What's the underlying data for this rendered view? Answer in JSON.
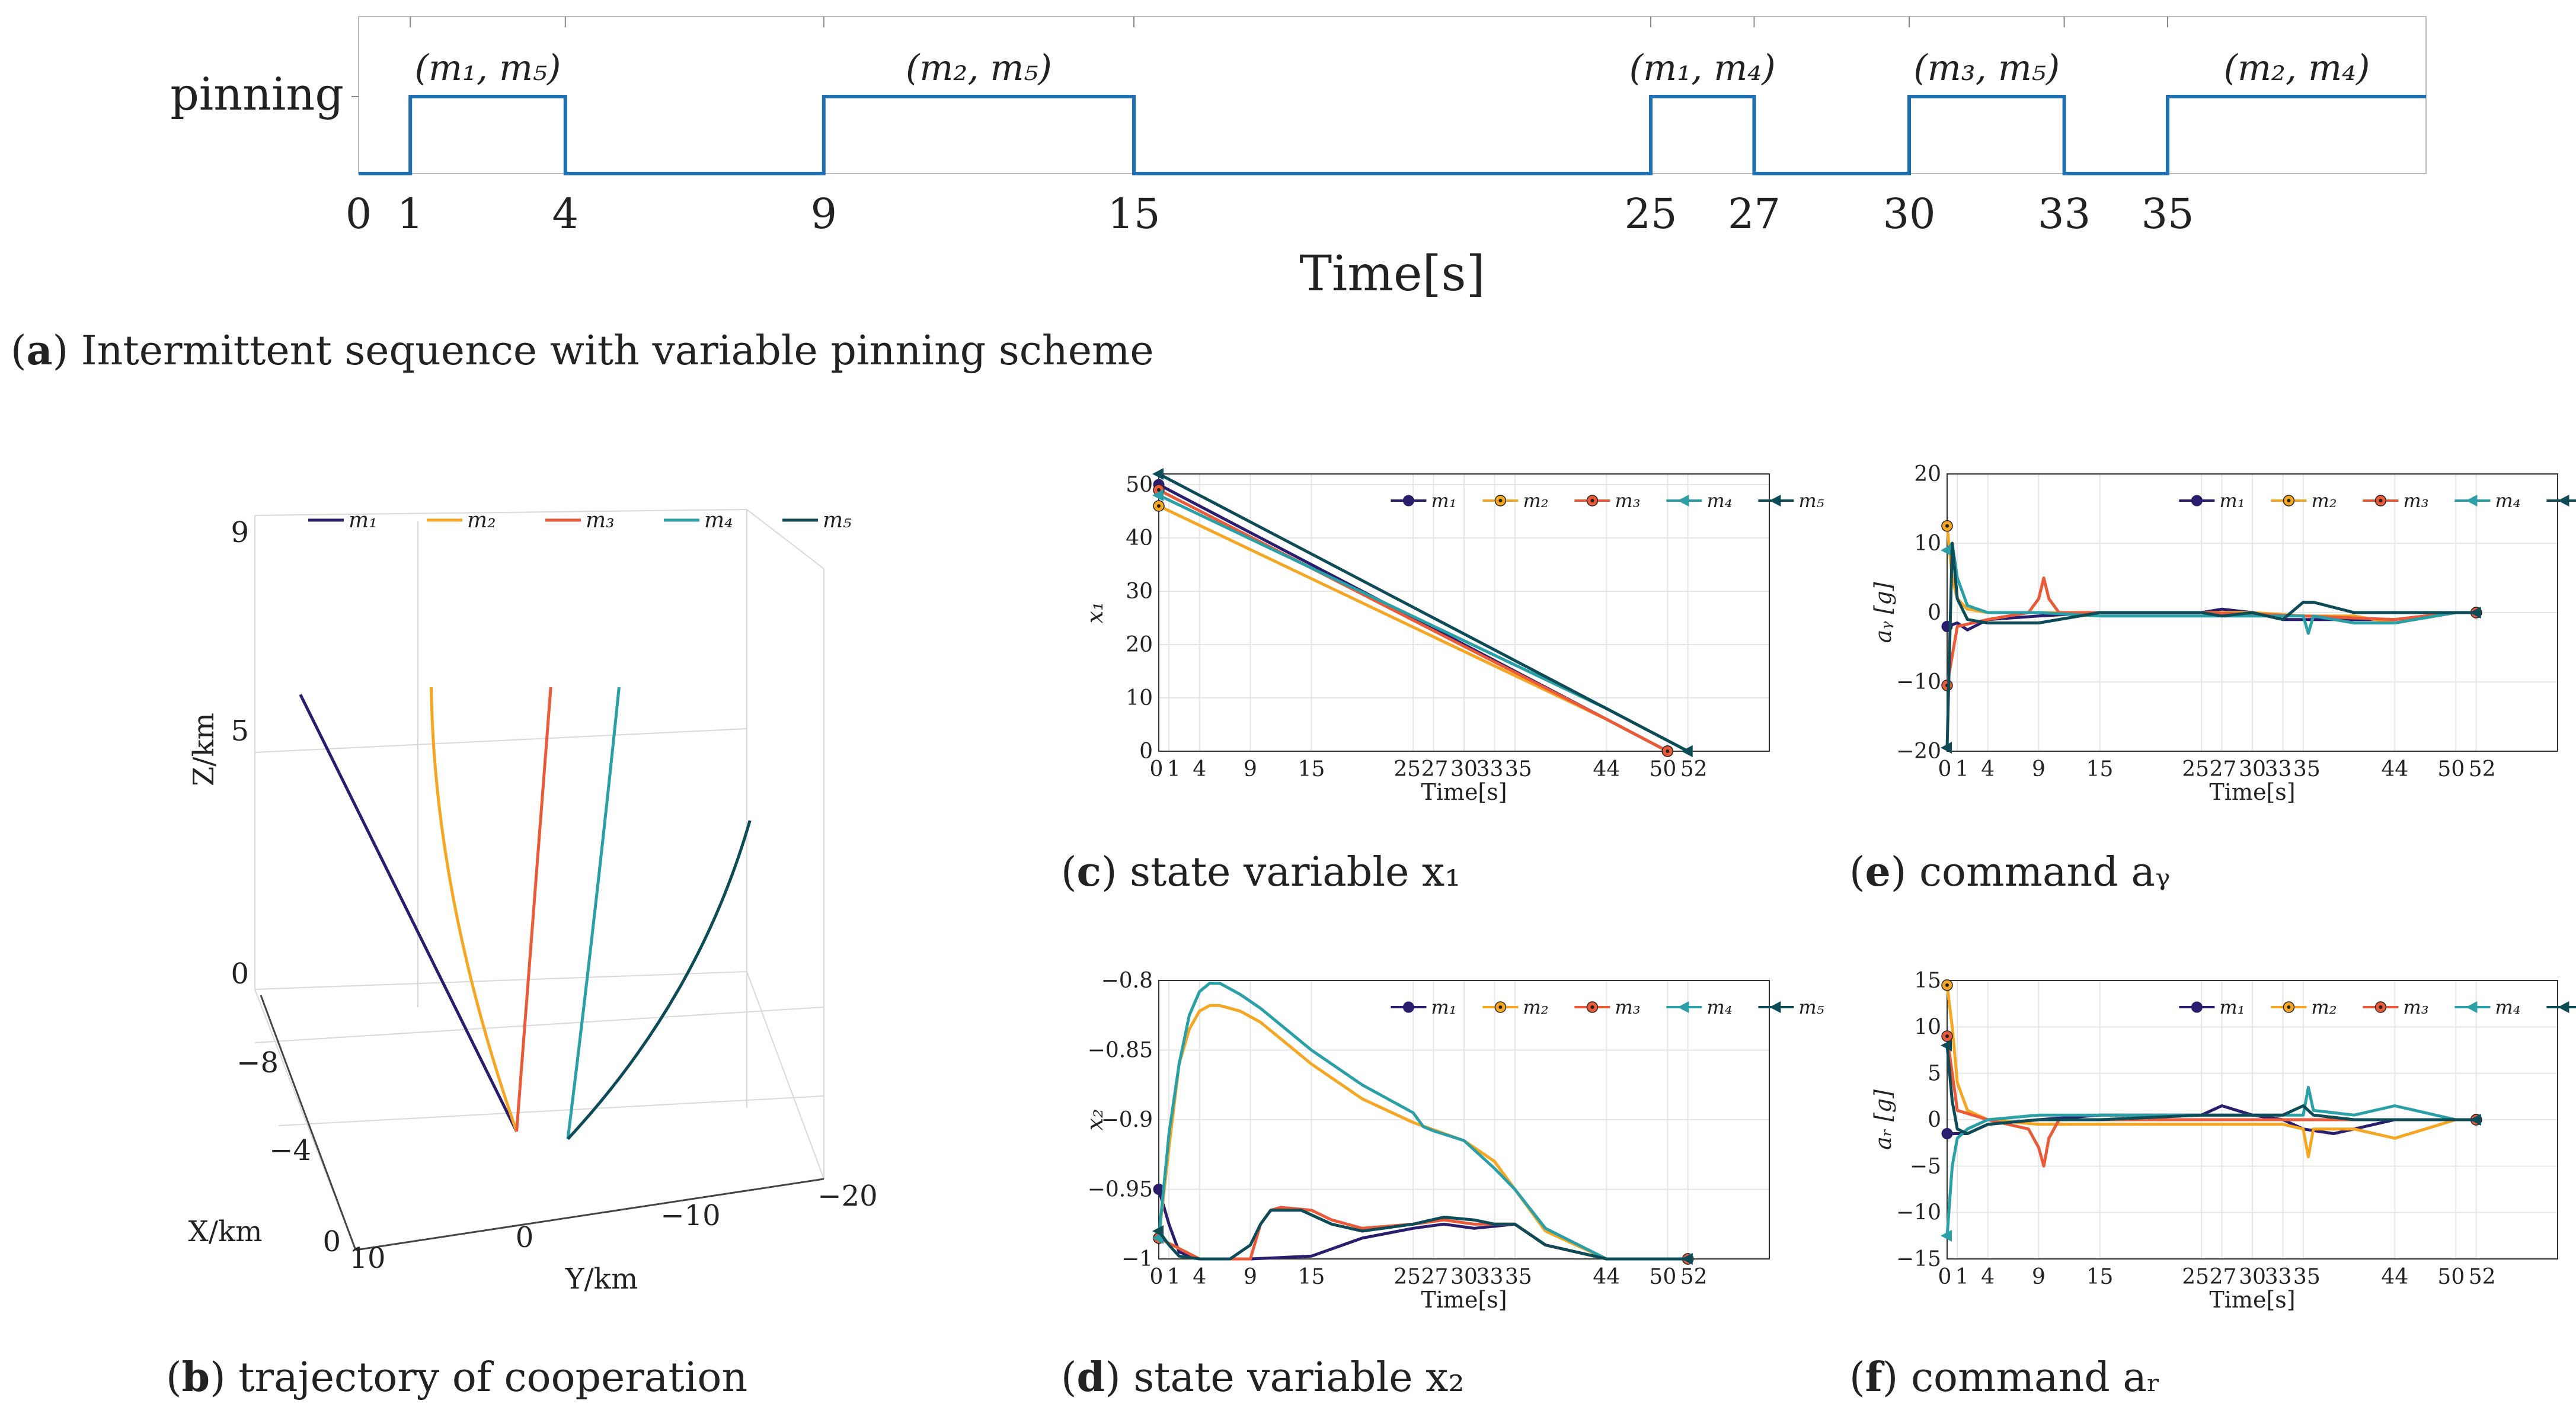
{
  "palette": {
    "m1": "#2b1d6e",
    "m2": "#f5a623",
    "m3": "#ea5a38",
    "m4": "#2a9fa6",
    "m5": "#0d4b57",
    "signal": "#1f6fb0",
    "grid": "#e6e6e6",
    "axis": "#333333"
  },
  "legend_names": [
    "m₁",
    "m₂",
    "m₃",
    "m₄",
    "m₅"
  ],
  "legend_markers": [
    "circle",
    "asterisk-circle",
    "asterisk-circle",
    "triangle-left",
    "triangle-left"
  ],
  "captions": {
    "a": {
      "letter": "a",
      "text": "Intermittent sequence with variable pinning scheme"
    },
    "b": {
      "letter": "b",
      "text": "trajectory of cooperation"
    },
    "c": {
      "letter": "c",
      "text": "state variable x₁"
    },
    "d": {
      "letter": "d",
      "text": "state variable x₂"
    },
    "e": {
      "letter": "e",
      "text": "command aᵧ"
    },
    "f": {
      "letter": "f",
      "text": "command aᵣ"
    }
  },
  "chart_data": [
    {
      "id": "a",
      "type": "line",
      "ylabel": "pinning",
      "xlabel": "Time[s]",
      "xlim": [
        0,
        40
      ],
      "xticks": [
        0,
        1,
        4,
        9,
        15,
        25,
        27,
        30,
        33,
        35
      ],
      "intervals": [
        {
          "start": 1,
          "end": 4,
          "label": "(m₁, m₅)"
        },
        {
          "start": 9,
          "end": 15,
          "label": "(m₂, m₅)"
        },
        {
          "start": 25,
          "end": 27,
          "label": "(m₁, m₄)"
        },
        {
          "start": 30,
          "end": 33,
          "label": "(m₃, m₅)"
        },
        {
          "start": 35,
          "end": 40,
          "label": "(m₂, m₄)"
        }
      ]
    },
    {
      "id": "b",
      "type": "line",
      "xlabel": "X/km",
      "ylabel": "Y/km",
      "zlabel": "Z/km",
      "x_ticks": [
        "0",
        "−4",
        "−8"
      ],
      "y_ticks": [
        "10",
        "0",
        "−10",
        "−20"
      ],
      "z_ticks": [
        "0",
        "5",
        "9"
      ],
      "series": [
        {
          "name": "m₁",
          "points": [
            [
              0.08,
              0.25,
              1.08
            ],
            [
              0.46,
              0.84,
              0.0
            ]
          ]
        },
        {
          "name": "m₂",
          "points": [
            [
              0.31,
              0.24,
              1.0
            ],
            [
              0.315,
              0.52,
              0.9
            ],
            [
              0.46,
              0.84,
              0.0
            ]
          ]
        },
        {
          "name": "m₃",
          "points": [
            [
              0.52,
              0.24,
              1.0
            ],
            [
              0.46,
              0.84,
              0.0
            ]
          ]
        },
        {
          "name": "m₄",
          "points": [
            [
              0.64,
              0.24,
              1.0
            ],
            [
              0.6,
              0.54,
              0.94
            ],
            [
              0.55,
              0.85,
              0.0
            ]
          ]
        },
        {
          "name": "m₅",
          "points": [
            [
              0.87,
              0.42,
              1.0
            ],
            [
              0.78,
              0.66,
              0.85
            ],
            [
              0.55,
              0.85,
              0.0
            ]
          ]
        }
      ]
    },
    {
      "id": "c",
      "type": "line",
      "xlabel": "Time[s]",
      "ylabel": "x₁",
      "xlim": [
        0,
        60
      ],
      "ylim": [
        0,
        52
      ],
      "xticks": [
        0,
        1,
        4,
        9,
        15,
        25,
        27,
        30,
        33,
        35,
        44,
        50,
        52
      ],
      "yticks": [
        0,
        10,
        20,
        30,
        40,
        50
      ],
      "series": [
        {
          "name": "m₁",
          "x": [
            0,
            44,
            50
          ],
          "y": [
            50,
            6,
            0
          ]
        },
        {
          "name": "m₂",
          "x": [
            0,
            44,
            50
          ],
          "y": [
            46,
            6,
            0
          ]
        },
        {
          "name": "m₃",
          "x": [
            0,
            44,
            50
          ],
          "y": [
            49,
            6,
            0
          ]
        },
        {
          "name": "m₄",
          "x": [
            0,
            44,
            52
          ],
          "y": [
            48,
            8,
            0
          ]
        },
        {
          "name": "m₅",
          "x": [
            0,
            44,
            50,
            52
          ],
          "y": [
            52,
            8,
            2,
            0
          ]
        }
      ]
    },
    {
      "id": "d",
      "type": "line",
      "xlabel": "Time[s]",
      "ylabel": "x₂",
      "xlim": [
        0,
        60
      ],
      "ylim": [
        -1,
        -0.8
      ],
      "xticks": [
        0,
        1,
        4,
        9,
        15,
        25,
        27,
        30,
        33,
        35,
        44,
        50,
        52
      ],
      "yticks": [
        -1,
        -0.95,
        -0.9,
        -0.85,
        -0.8
      ],
      "series": [
        {
          "name": "m₁",
          "x": [
            0,
            1,
            2,
            4,
            9,
            15,
            20,
            25,
            28,
            31,
            35,
            38,
            44,
            50,
            52
          ],
          "y": [
            -0.95,
            -0.975,
            -0.995,
            -1.0,
            -1.0,
            -0.998,
            -0.985,
            -0.978,
            -0.975,
            -0.978,
            -0.975,
            -0.99,
            -1.0,
            -1.0,
            -1.0
          ]
        },
        {
          "name": "m₂",
          "x": [
            0,
            1,
            2,
            3,
            4,
            5,
            6,
            8,
            10,
            15,
            20,
            25,
            30,
            33,
            35,
            38,
            44,
            50,
            52
          ],
          "y": [
            -0.985,
            -0.92,
            -0.86,
            -0.835,
            -0.822,
            -0.818,
            -0.818,
            -0.822,
            -0.83,
            -0.86,
            -0.885,
            -0.902,
            -0.915,
            -0.93,
            -0.95,
            -0.98,
            -1.0,
            -1.0,
            -1.0
          ]
        },
        {
          "name": "m₃",
          "x": [
            0,
            4,
            8,
            9,
            10,
            11,
            12,
            15,
            17,
            20,
            25,
            28,
            31,
            35,
            38,
            44,
            50,
            52
          ],
          "y": [
            -0.985,
            -1.0,
            -1.0,
            -1.0,
            -0.975,
            -0.965,
            -0.963,
            -0.965,
            -0.972,
            -0.978,
            -0.975,
            -0.972,
            -0.975,
            -0.975,
            -0.99,
            -1.0,
            -1.0,
            -1.0
          ]
        },
        {
          "name": "m₄",
          "x": [
            0,
            1,
            2,
            3,
            4,
            5,
            6,
            8,
            10,
            15,
            20,
            25,
            26,
            27,
            30,
            33,
            35,
            38,
            44,
            50,
            52
          ],
          "y": [
            -0.985,
            -0.91,
            -0.86,
            -0.825,
            -0.808,
            -0.802,
            -0.802,
            -0.81,
            -0.82,
            -0.85,
            -0.875,
            -0.895,
            -0.905,
            -0.908,
            -0.915,
            -0.935,
            -0.95,
            -0.978,
            -1.0,
            -1.0,
            -1.0
          ]
        },
        {
          "name": "m₅",
          "x": [
            0,
            1,
            2,
            4,
            7,
            9,
            10,
            11,
            14,
            17,
            20,
            25,
            28,
            31,
            33,
            35,
            38,
            44,
            50,
            52
          ],
          "y": [
            -0.98,
            -0.99,
            -0.998,
            -1.0,
            -1.0,
            -0.99,
            -0.975,
            -0.965,
            -0.965,
            -0.975,
            -0.98,
            -0.975,
            -0.97,
            -0.972,
            -0.975,
            -0.975,
            -0.99,
            -1.0,
            -1.0,
            -1.0
          ]
        }
      ]
    },
    {
      "id": "e",
      "type": "line",
      "xlabel": "Time[s]",
      "ylabel": "aᵧ [g]",
      "xlim": [
        0,
        60
      ],
      "ylim": [
        -20,
        20
      ],
      "xticks": [
        0,
        1,
        4,
        9,
        15,
        25,
        27,
        30,
        33,
        35,
        44,
        50,
        52
      ],
      "yticks": [
        -20,
        -10,
        0,
        10,
        20
      ],
      "series": [
        {
          "name": "m₁",
          "x": [
            0,
            1,
            2,
            4,
            9,
            15,
            25,
            27,
            30,
            33,
            35,
            38,
            44,
            50,
            52
          ],
          "y": [
            -2,
            -1.5,
            -2.5,
            -1,
            -0.5,
            0,
            0,
            0.5,
            0,
            -1,
            -1,
            -1,
            -1,
            0,
            0
          ]
        },
        {
          "name": "m₂",
          "x": [
            0,
            0.5,
            1,
            2,
            4,
            9,
            15,
            25,
            30,
            35,
            40,
            44,
            50,
            52
          ],
          "y": [
            12.5,
            5,
            2,
            0.5,
            0,
            0,
            0,
            0,
            0,
            -0.5,
            -0.5,
            -1.5,
            0,
            0
          ]
        },
        {
          "name": "m₃",
          "x": [
            0,
            1,
            4,
            8,
            9,
            9.5,
            10,
            11,
            15,
            25,
            35,
            44,
            50,
            52
          ],
          "y": [
            -10.5,
            -2,
            -1,
            0,
            2,
            5,
            2,
            0,
            0,
            0,
            -0.5,
            -1,
            0,
            0
          ]
        },
        {
          "name": "m₄",
          "x": [
            0,
            0.5,
            1,
            2,
            4,
            9,
            15,
            25,
            33,
            35,
            35.5,
            36,
            40,
            44,
            50,
            52
          ],
          "y": [
            9,
            10,
            5,
            1,
            0,
            0,
            -0.5,
            -0.5,
            -0.5,
            -0.5,
            -3,
            -0.5,
            -1.5,
            -1.5,
            0,
            0
          ]
        },
        {
          "name": "m₅",
          "x": [
            0,
            0.5,
            1,
            2,
            4,
            9,
            15,
            25,
            27,
            30,
            33,
            35,
            36,
            40,
            44,
            50,
            52
          ],
          "y": [
            -19.5,
            10,
            2,
            -1,
            -1.5,
            -1.5,
            0,
            0,
            -0.5,
            0,
            -1,
            1.5,
            1.5,
            0,
            0,
            0,
            0
          ]
        }
      ]
    },
    {
      "id": "f",
      "type": "line",
      "xlabel": "Time[s]",
      "ylabel": "aᵣ [g]",
      "xlim": [
        0,
        60
      ],
      "ylim": [
        -15,
        15
      ],
      "xticks": [
        0,
        1,
        4,
        9,
        15,
        25,
        27,
        30,
        33,
        35,
        44,
        50,
        52
      ],
      "yticks": [
        -15,
        -10,
        -5,
        0,
        5,
        10,
        15
      ],
      "series": [
        {
          "name": "m₁",
          "x": [
            0,
            1,
            2,
            4,
            9,
            15,
            25,
            27,
            30,
            33,
            35,
            38,
            44,
            50,
            52
          ],
          "y": [
            -1.5,
            -1.5,
            -1.5,
            -0.5,
            0,
            0.5,
            0.5,
            1.5,
            0.5,
            0,
            -1,
            -1.5,
            0,
            0,
            0
          ]
        },
        {
          "name": "m₂",
          "x": [
            0,
            0.5,
            1,
            2,
            4,
            9,
            15,
            25,
            33,
            35,
            35.5,
            36,
            40,
            44,
            50,
            52
          ],
          "y": [
            14.5,
            10,
            4,
            1,
            0,
            -0.5,
            -0.5,
            -0.5,
            -0.5,
            -1,
            -4,
            -1,
            -1,
            -2,
            0,
            0
          ]
        },
        {
          "name": "m₃",
          "x": [
            0,
            1,
            4,
            8,
            9,
            9.5,
            10,
            11,
            15,
            25,
            35,
            44,
            50,
            52
          ],
          "y": [
            9,
            1,
            0,
            -1,
            -3,
            -5,
            -2,
            0,
            0,
            0,
            0,
            0,
            0,
            0
          ]
        },
        {
          "name": "m₄",
          "x": [
            0,
            0.5,
            1,
            2,
            4,
            9,
            15,
            25,
            33,
            35,
            35.5,
            36,
            40,
            44,
            50,
            52
          ],
          "y": [
            -12.5,
            -5,
            -2,
            -1,
            0,
            0.5,
            0.5,
            0.5,
            0.5,
            0.5,
            3.5,
            1,
            0.5,
            1.5,
            0,
            0
          ]
        },
        {
          "name": "m₅",
          "x": [
            0,
            0.5,
            1,
            2,
            4,
            9,
            15,
            25,
            30,
            33,
            35,
            36,
            40,
            44,
            50,
            52
          ],
          "y": [
            8,
            2,
            -1,
            -1.5,
            -0.5,
            0,
            0,
            0.5,
            0.5,
            0.5,
            1.5,
            0.5,
            0,
            0,
            0,
            0
          ]
        }
      ]
    }
  ]
}
